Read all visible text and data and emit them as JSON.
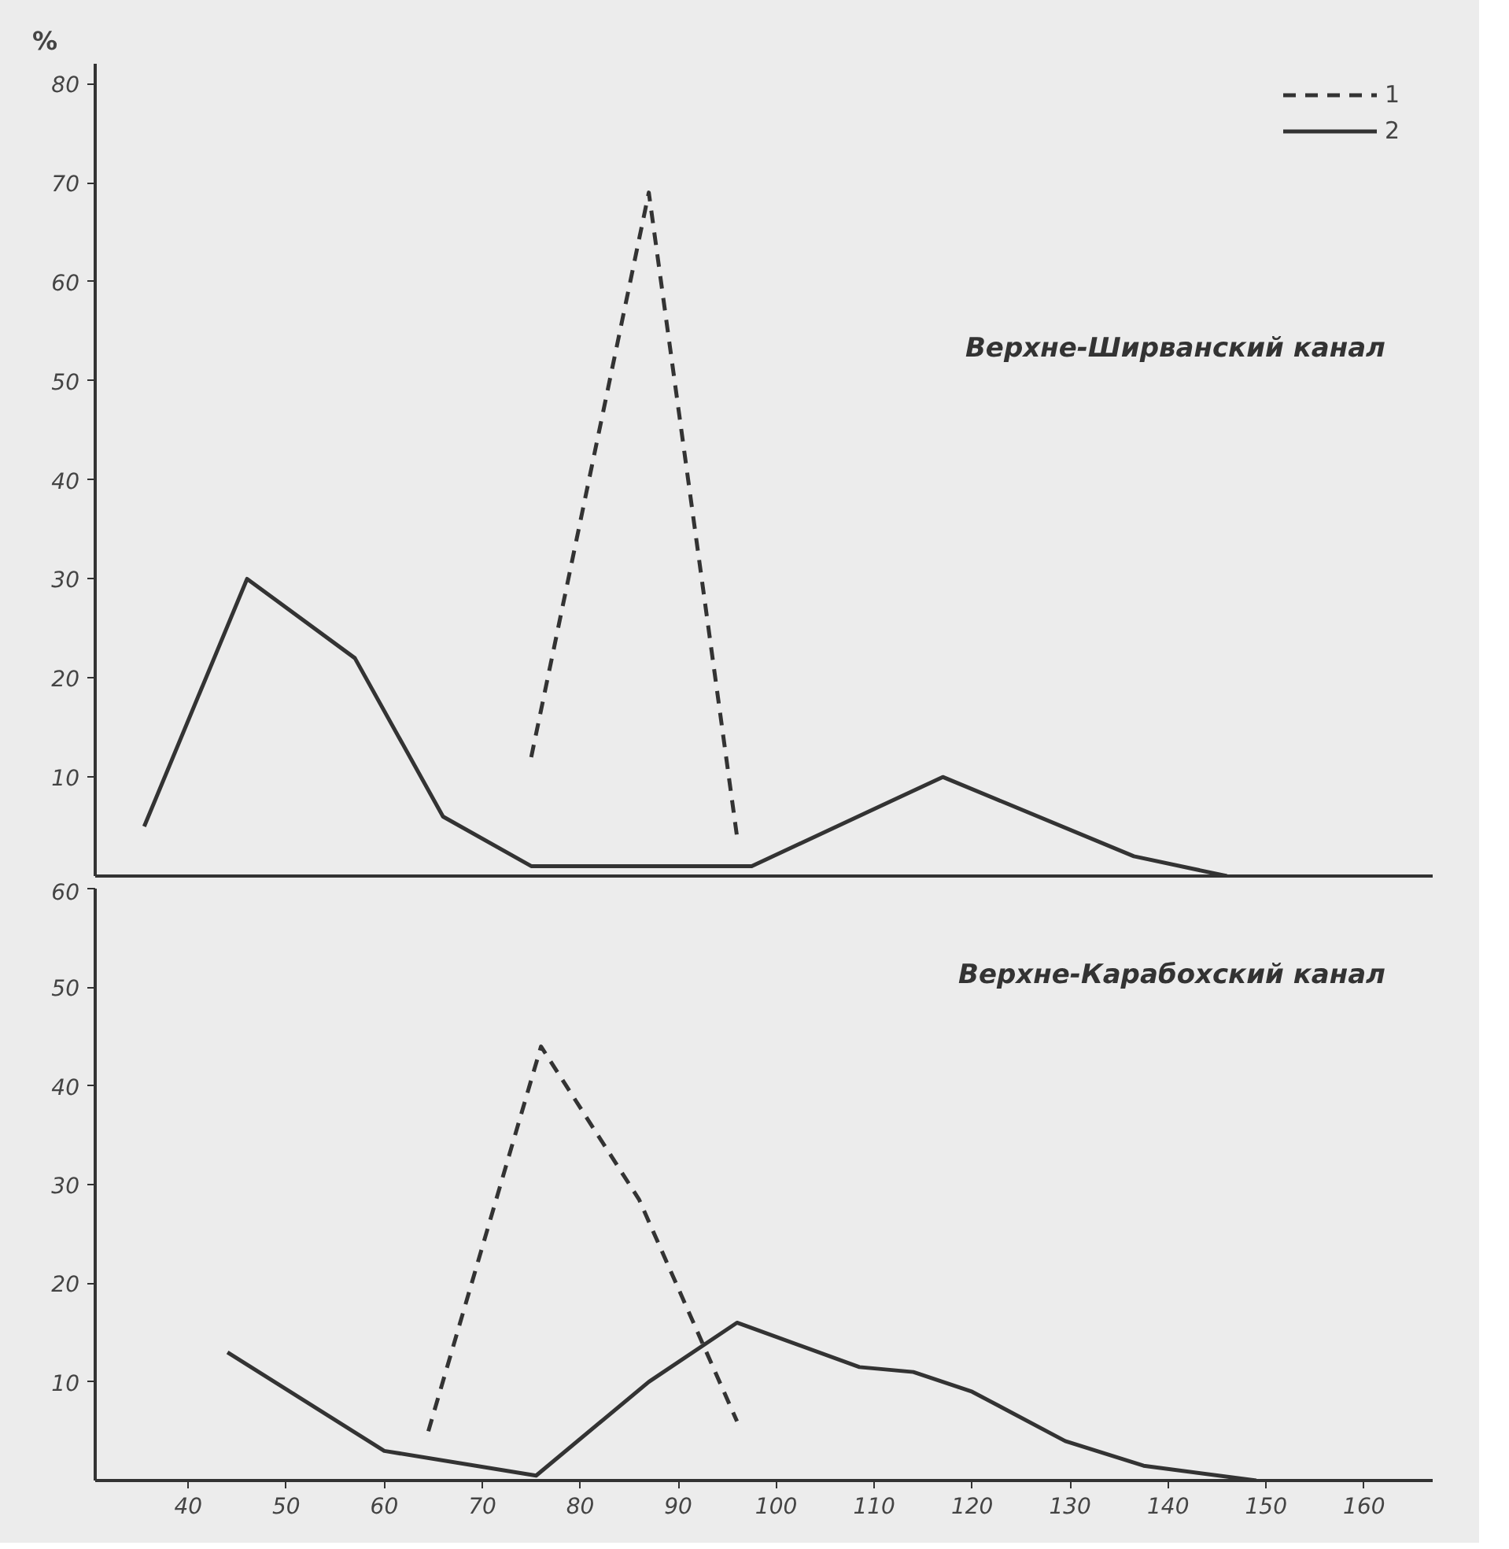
{
  "chart_data": [
    {
      "type": "line",
      "ylabel": "%",
      "xlim": [
        30.5,
        167
      ],
      "ylim": [
        0,
        82
      ],
      "yticks": [
        10,
        20,
        30,
        40,
        50,
        60,
        70,
        80
      ],
      "tick_labels": "y",
      "grid": false,
      "legend": "top right",
      "annotations": [
        "Верхне-Ширванский канал"
      ],
      "series": [
        {
          "name": "1",
          "color": "#333333",
          "line_style": "dashed",
          "x": [
            75,
            87,
            96
          ],
          "values": [
            12,
            69,
            4
          ]
        },
        {
          "name": "2",
          "color": "#333333",
          "line_style": "solid",
          "x": [
            35.5,
            46,
            57,
            66,
            75,
            97.5,
            117,
            136.5,
            146
          ],
          "values": [
            5,
            30,
            22,
            6,
            1,
            1,
            10,
            2,
            0
          ]
        }
      ]
    },
    {
      "type": "line",
      "xlim": [
        30.5,
        167
      ],
      "ylim": [
        0,
        60
      ],
      "xticks": [
        40,
        50,
        60,
        70,
        80,
        90,
        100,
        110,
        120,
        130,
        140,
        150,
        160
      ],
      "yticks": [
        10,
        20,
        30,
        40,
        50,
        60
      ],
      "grid": false,
      "annotations": [
        "Верхне-Карабохский канал"
      ],
      "series": [
        {
          "color": "#333333",
          "line_style": "dashed",
          "x": [
            64.5,
            76,
            86,
            96
          ],
          "values": [
            5,
            44,
            28.5,
            6
          ]
        },
        {
          "color": "#333333",
          "line_style": "solid",
          "x": [
            44,
            60,
            75.5,
            87,
            96,
            108.5,
            114,
            120,
            129.5,
            137.5,
            149
          ],
          "values": [
            13,
            3,
            0.5,
            10,
            16,
            11.5,
            11,
            9,
            4,
            1.5,
            0
          ]
        }
      ]
    }
  ]
}
